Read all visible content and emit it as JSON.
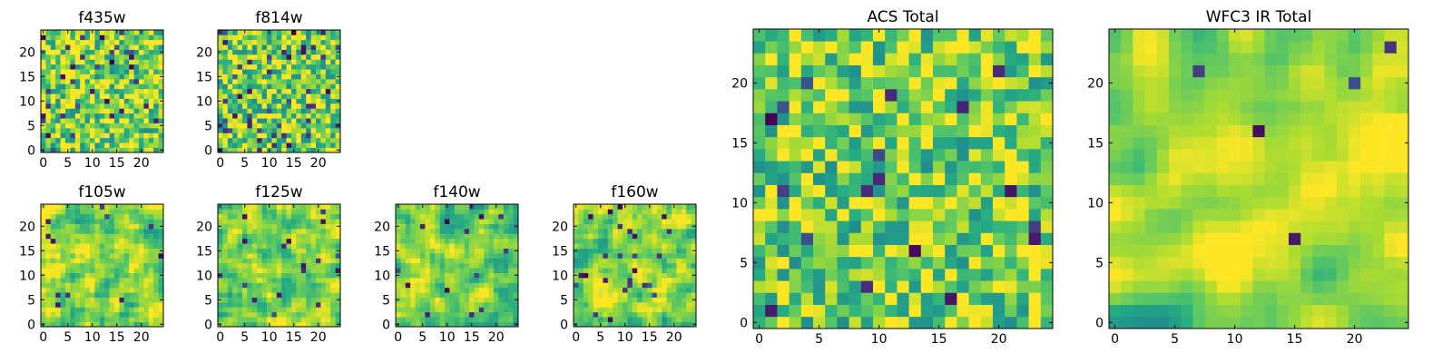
{
  "figure": {
    "colormap": "viridis",
    "colors": {
      "low": "#440154",
      "mid": "#21918c",
      "high": "#fde725",
      "axis": "#000000",
      "background": "#ffffff"
    }
  },
  "chart_data": [
    {
      "type": "heatmap",
      "title": "f435w",
      "xlim": [
        0,
        25
      ],
      "ylim": [
        0,
        25
      ],
      "xticks": [
        0,
        5,
        10,
        15,
        20
      ],
      "yticks": [
        0,
        5,
        10,
        15,
        20
      ],
      "grid": false,
      "colormap": "viridis",
      "seed": 11,
      "smooth": 0,
      "outlier_rate": 0.06,
      "bias": 0.72
    },
    {
      "type": "heatmap",
      "title": "f814w",
      "xlim": [
        0,
        25
      ],
      "ylim": [
        0,
        25
      ],
      "xticks": [
        0,
        5,
        10,
        15,
        20
      ],
      "yticks": [
        0,
        5,
        10,
        15,
        20
      ],
      "grid": false,
      "colormap": "viridis",
      "seed": 23,
      "smooth": 0,
      "outlier_rate": 0.06,
      "bias": 0.68
    },
    {
      "type": "heatmap",
      "title": "f105w",
      "xlim": [
        0,
        25
      ],
      "ylim": [
        0,
        25
      ],
      "xticks": [
        0,
        5,
        10,
        15,
        20
      ],
      "yticks": [
        0,
        5,
        10,
        15,
        20
      ],
      "grid": false,
      "colormap": "viridis",
      "seed": 37,
      "smooth": 1,
      "outlier_rate": 0.02,
      "bias": 0.78
    },
    {
      "type": "heatmap",
      "title": "f125w",
      "xlim": [
        0,
        25
      ],
      "ylim": [
        0,
        25
      ],
      "xticks": [
        0,
        5,
        10,
        15,
        20
      ],
      "yticks": [
        0,
        5,
        10,
        15,
        20
      ],
      "grid": false,
      "colormap": "viridis",
      "seed": 41,
      "smooth": 1,
      "outlier_rate": 0.02,
      "bias": 0.8
    },
    {
      "type": "heatmap",
      "title": "f140w",
      "xlim": [
        0,
        25
      ],
      "ylim": [
        0,
        25
      ],
      "xticks": [
        0,
        5,
        10,
        15,
        20
      ],
      "yticks": [
        0,
        5,
        10,
        15,
        20
      ],
      "grid": false,
      "colormap": "viridis",
      "seed": 53,
      "smooth": 1,
      "outlier_rate": 0.03,
      "bias": 0.62
    },
    {
      "type": "heatmap",
      "title": "f160w",
      "xlim": [
        0,
        25
      ],
      "ylim": [
        0,
        25
      ],
      "xticks": [
        0,
        5,
        10,
        15,
        20
      ],
      "yticks": [
        0,
        5,
        10,
        15,
        20
      ],
      "grid": false,
      "colormap": "viridis",
      "seed": 67,
      "smooth": 1,
      "outlier_rate": 0.03,
      "bias": 0.72
    },
    {
      "type": "heatmap",
      "title": "ACS Total",
      "xlim": [
        0,
        25
      ],
      "ylim": [
        0,
        25
      ],
      "xticks": [
        0,
        5,
        10,
        15,
        20
      ],
      "yticks": [
        0,
        5,
        10,
        15,
        20
      ],
      "grid": false,
      "colormap": "viridis",
      "seed": 79,
      "smooth": 0,
      "outlier_rate": 0.04,
      "bias": 0.7
    },
    {
      "type": "heatmap",
      "title": "WFC3 IR Total",
      "xlim": [
        0,
        25
      ],
      "ylim": [
        0,
        25
      ],
      "xticks": [
        0,
        5,
        10,
        15,
        20
      ],
      "yticks": [
        0,
        5,
        10,
        15,
        20
      ],
      "grid": false,
      "colormap": "viridis",
      "seed": 97,
      "smooth": 2,
      "outlier_rate": 0.01,
      "bias": 0.72
    }
  ]
}
